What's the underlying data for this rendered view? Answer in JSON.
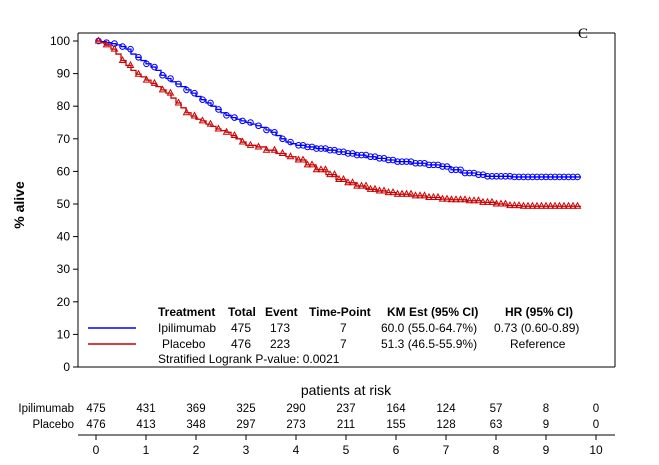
{
  "chart_data": {
    "type": "line",
    "title": "",
    "panel_label": "C",
    "ylabel": "% alive",
    "xlabel": "",
    "xlim": [
      0,
      10
    ],
    "ylim": [
      0,
      100
    ],
    "x_ticks": [
      0,
      1,
      2,
      3,
      4,
      5,
      6,
      7,
      8,
      9,
      10
    ],
    "y_ticks": [
      0,
      10,
      20,
      30,
      40,
      50,
      60,
      70,
      80,
      90,
      100
    ],
    "series": [
      {
        "name": "Ipilimumab",
        "color": "#0000ff",
        "marker": "circle",
        "points": [
          [
            0,
            100
          ],
          [
            0.1,
            99.8
          ],
          [
            0.2,
            99.5
          ],
          [
            0.3,
            99.2
          ],
          [
            0.4,
            98.8
          ],
          [
            0.5,
            98.3
          ],
          [
            0.6,
            97.5
          ],
          [
            0.7,
            96.0
          ],
          [
            0.8,
            95.0
          ],
          [
            0.9,
            94.0
          ],
          [
            1.0,
            93.0
          ],
          [
            1.1,
            92.0
          ],
          [
            1.2,
            91.0
          ],
          [
            1.3,
            89.5
          ],
          [
            1.4,
            88.5
          ],
          [
            1.5,
            87.5
          ],
          [
            1.6,
            86.8
          ],
          [
            1.7,
            86.0
          ],
          [
            1.8,
            85.0
          ],
          [
            1.9,
            84.0
          ],
          [
            2.0,
            83.0
          ],
          [
            2.1,
            82.0
          ],
          [
            2.2,
            81.0
          ],
          [
            2.3,
            80.0
          ],
          [
            2.4,
            79.0
          ],
          [
            2.5,
            78.0
          ],
          [
            2.6,
            77.2
          ],
          [
            2.7,
            76.5
          ],
          [
            2.8,
            76.0
          ],
          [
            2.9,
            75.5
          ],
          [
            3.0,
            75.0
          ],
          [
            3.1,
            74.5
          ],
          [
            3.2,
            74.0
          ],
          [
            3.3,
            73.5
          ],
          [
            3.4,
            72.7
          ],
          [
            3.5,
            72.0
          ],
          [
            3.6,
            71.0
          ],
          [
            3.7,
            70.0
          ],
          [
            3.8,
            69.0
          ],
          [
            3.9,
            68.5
          ],
          [
            4.0,
            68.0
          ],
          [
            4.2,
            67.5
          ],
          [
            4.4,
            67.0
          ],
          [
            4.6,
            66.5
          ],
          [
            4.8,
            66.0
          ],
          [
            5.0,
            65.5
          ],
          [
            5.2,
            65.0
          ],
          [
            5.4,
            64.5
          ],
          [
            5.6,
            64.0
          ],
          [
            5.8,
            63.5
          ],
          [
            6.0,
            63.0
          ],
          [
            6.3,
            62.5
          ],
          [
            6.6,
            62.0
          ],
          [
            6.9,
            61.5
          ],
          [
            7.1,
            60.5
          ],
          [
            7.3,
            59.5
          ],
          [
            7.6,
            59.0
          ],
          [
            7.8,
            58.5
          ],
          [
            8.0,
            58.5
          ],
          [
            8.3,
            58.3
          ],
          [
            8.6,
            58.3
          ],
          [
            8.9,
            58.3
          ],
          [
            9.2,
            58.3
          ],
          [
            9.5,
            58.3
          ],
          [
            9.7,
            58.3
          ]
        ]
      },
      {
        "name": "Placebo",
        "color": "#cc0000",
        "marker": "triangle",
        "points": [
          [
            0,
            100
          ],
          [
            0.1,
            99.5
          ],
          [
            0.2,
            98.8
          ],
          [
            0.3,
            97.5
          ],
          [
            0.4,
            96.0
          ],
          [
            0.5,
            94.0
          ],
          [
            0.6,
            92.5
          ],
          [
            0.7,
            91.0
          ],
          [
            0.8,
            89.8
          ],
          [
            0.9,
            89.0
          ],
          [
            1.0,
            88.0
          ],
          [
            1.1,
            87.0
          ],
          [
            1.2,
            86.0
          ],
          [
            1.3,
            85.0
          ],
          [
            1.4,
            84.0
          ],
          [
            1.5,
            82.5
          ],
          [
            1.6,
            81.0
          ],
          [
            1.7,
            79.5
          ],
          [
            1.8,
            78.0
          ],
          [
            1.9,
            77.0
          ],
          [
            2.0,
            76.0
          ],
          [
            2.1,
            75.5
          ],
          [
            2.2,
            74.5
          ],
          [
            2.3,
            73.8
          ],
          [
            2.4,
            73.0
          ],
          [
            2.5,
            72.5
          ],
          [
            2.6,
            72.0
          ],
          [
            2.7,
            71.0
          ],
          [
            2.8,
            70.0
          ],
          [
            2.9,
            69.0
          ],
          [
            3.0,
            68.0
          ],
          [
            3.2,
            67.5
          ],
          [
            3.4,
            66.5
          ],
          [
            3.6,
            65.5
          ],
          [
            3.8,
            64.5
          ],
          [
            4.0,
            63.5
          ],
          [
            4.2,
            62.0
          ],
          [
            4.4,
            60.5
          ],
          [
            4.6,
            59.0
          ],
          [
            4.8,
            57.5
          ],
          [
            5.0,
            56.5
          ],
          [
            5.2,
            55.5
          ],
          [
            5.4,
            54.5
          ],
          [
            5.6,
            54.0
          ],
          [
            5.8,
            53.5
          ],
          [
            6.0,
            53.0
          ],
          [
            6.3,
            52.5
          ],
          [
            6.6,
            52.0
          ],
          [
            6.9,
            51.5
          ],
          [
            7.1,
            51.3
          ],
          [
            7.4,
            51.0
          ],
          [
            7.7,
            50.5
          ],
          [
            8.0,
            50.0
          ],
          [
            8.2,
            49.5
          ],
          [
            8.5,
            49.3
          ],
          [
            8.8,
            49.3
          ],
          [
            9.1,
            49.3
          ],
          [
            9.4,
            49.3
          ],
          [
            9.7,
            49.3
          ]
        ]
      }
    ]
  },
  "legend_table": {
    "headers": [
      "Treatment",
      "Total",
      "Event",
      "Time-Point",
      "KM Est (95% CI)",
      "HR (95% CI)"
    ],
    "rows": [
      {
        "label": "Ipilimumab",
        "color": "#0000ff",
        "total": "475",
        "event": "173",
        "timepoint": "7",
        "km": "60.0 (55.0-64.7%)",
        "hr": "0.73 (0.60-0.89)"
      },
      {
        "label": "Placebo",
        "color": "#cc0000",
        "total": "476",
        "event": "223",
        "timepoint": "7",
        "km": "51.3 (46.5-55.9%)",
        "hr": "Reference"
      }
    ],
    "footnote": "Stratified Logrank P-value: 0.0021"
  },
  "risk_table": {
    "title": "patients at risk",
    "rows": [
      {
        "label": "Ipilimumab",
        "values": [
          "475",
          "431",
          "369",
          "325",
          "290",
          "237",
          "164",
          "124",
          "57",
          "8",
          "0"
        ]
      },
      {
        "label": "Placebo",
        "values": [
          "476",
          "413",
          "348",
          "297",
          "273",
          "211",
          "155",
          "128",
          "63",
          "9",
          "0"
        ]
      }
    ]
  }
}
